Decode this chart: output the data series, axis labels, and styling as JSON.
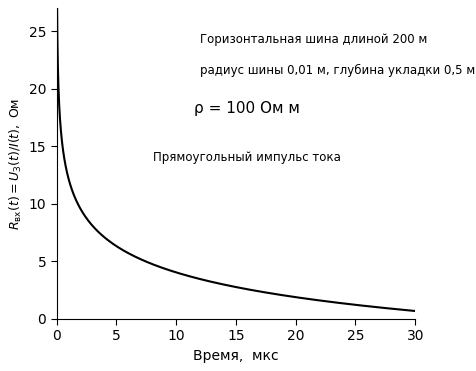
{
  "xlabel": "Время,  мкс",
  "xlim": [
    0,
    30
  ],
  "ylim": [
    0,
    27
  ],
  "xticks": [
    0,
    5,
    10,
    15,
    20,
    25,
    30
  ],
  "yticks": [
    0,
    5,
    10,
    15,
    20,
    25
  ],
  "annotation_line1": "Горизонтальная шина длиной 200 м",
  "annotation_line2": "радиус шины 0,01 м, глубина укладки 0,5 м",
  "annotation_rho": "ρ = 100 Ом м",
  "annotation_pulse": "Прямоугольный импульс тока",
  "curve_color": "#000000",
  "bg_color": "#ffffff",
  "t_pts": [
    0.02,
    0.05,
    0.1,
    0.2,
    0.3,
    0.5,
    0.75,
    1.0,
    1.5,
    2.0,
    3.0,
    4.0,
    5.0,
    7.0,
    10.0,
    12.0,
    15.0,
    20.0,
    25.0,
    30.0
  ],
  "R_pts": [
    27.5,
    26.5,
    24.0,
    21.0,
    18.5,
    15.5,
    13.0,
    11.5,
    9.5,
    8.3,
    6.8,
    6.0,
    5.3,
    4.3,
    3.6,
    3.3,
    3.0,
    2.7,
    2.4,
    2.1
  ]
}
